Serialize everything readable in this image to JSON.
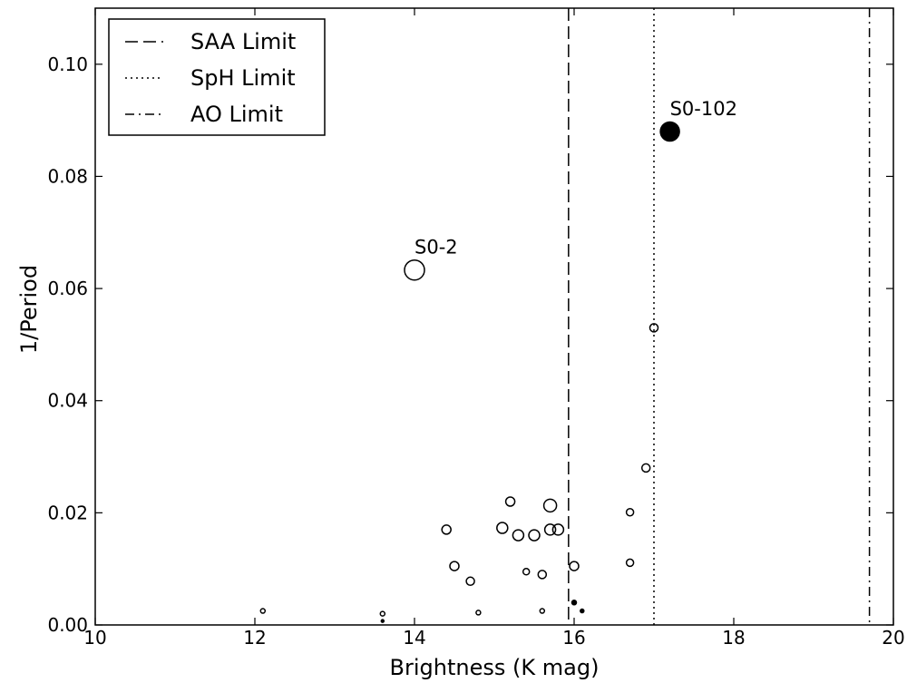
{
  "chart_data": {
    "type": "scatter",
    "xlabel": "Brightness (K mag)",
    "ylabel": "1/Period",
    "xlim": [
      10,
      20
    ],
    "ylim": [
      0,
      0.11
    ],
    "xticks": [
      "10",
      "12",
      "14",
      "16",
      "18",
      "20"
    ],
    "yticks": [
      "0.00",
      "0.02",
      "0.04",
      "0.06",
      "0.08",
      "0.10"
    ],
    "grid": false,
    "legend": {
      "position": "top-left",
      "entries": [
        {
          "label": "SAA Limit",
          "style": "dashed"
        },
        {
          "label": "SpH Limit",
          "style": "dotted"
        },
        {
          "label": "AO Limit",
          "style": "dashdot"
        }
      ]
    },
    "vlines": [
      {
        "label": "SAA Limit",
        "x": 15.93,
        "style": "dashed"
      },
      {
        "label": "SpH Limit",
        "x": 17.0,
        "style": "dotted"
      },
      {
        "label": "AO Limit",
        "x": 19.7,
        "style": "dashdot"
      }
    ],
    "points": [
      {
        "x": 12.1,
        "y": 0.0025,
        "size": 2.5,
        "filled": false
      },
      {
        "x": 13.6,
        "y": 0.002,
        "size": 2.5,
        "filled": false
      },
      {
        "x": 13.6,
        "y": 0.0007,
        "size": 1.5,
        "filled": true
      },
      {
        "x": 14.0,
        "y": 0.0633,
        "size": 11,
        "filled": false
      },
      {
        "x": 14.4,
        "y": 0.017,
        "size": 5,
        "filled": false
      },
      {
        "x": 14.5,
        "y": 0.0105,
        "size": 5,
        "filled": false
      },
      {
        "x": 14.7,
        "y": 0.0078,
        "size": 4.5,
        "filled": false
      },
      {
        "x": 14.8,
        "y": 0.0022,
        "size": 2.5,
        "filled": false
      },
      {
        "x": 15.1,
        "y": 0.0173,
        "size": 6,
        "filled": false
      },
      {
        "x": 15.2,
        "y": 0.022,
        "size": 5,
        "filled": false
      },
      {
        "x": 15.3,
        "y": 0.016,
        "size": 6,
        "filled": false
      },
      {
        "x": 15.4,
        "y": 0.0095,
        "size": 3.5,
        "filled": false
      },
      {
        "x": 15.5,
        "y": 0.016,
        "size": 6,
        "filled": false
      },
      {
        "x": 15.6,
        "y": 0.009,
        "size": 4.5,
        "filled": false
      },
      {
        "x": 15.6,
        "y": 0.0025,
        "size": 2.5,
        "filled": false
      },
      {
        "x": 15.7,
        "y": 0.0213,
        "size": 7,
        "filled": false
      },
      {
        "x": 15.7,
        "y": 0.017,
        "size": 6,
        "filled": false
      },
      {
        "x": 15.8,
        "y": 0.017,
        "size": 6,
        "filled": false
      },
      {
        "x": 16.0,
        "y": 0.0105,
        "size": 5,
        "filled": false
      },
      {
        "x": 16.0,
        "y": 0.004,
        "size": 2.5,
        "filled": true
      },
      {
        "x": 16.1,
        "y": 0.0025,
        "size": 2,
        "filled": true
      },
      {
        "x": 16.7,
        "y": 0.0201,
        "size": 4,
        "filled": false
      },
      {
        "x": 16.7,
        "y": 0.0111,
        "size": 4,
        "filled": false
      },
      {
        "x": 16.9,
        "y": 0.028,
        "size": 4.5,
        "filled": false
      },
      {
        "x": 17.0,
        "y": 0.053,
        "size": 4.5,
        "filled": false
      },
      {
        "x": 17.2,
        "y": 0.088,
        "size": 10.5,
        "filled": true
      }
    ],
    "annotations": [
      {
        "text": "S0-2",
        "x": 14.0,
        "y": 0.0633
      },
      {
        "text": "S0-102",
        "x": 17.2,
        "y": 0.088
      }
    ]
  }
}
